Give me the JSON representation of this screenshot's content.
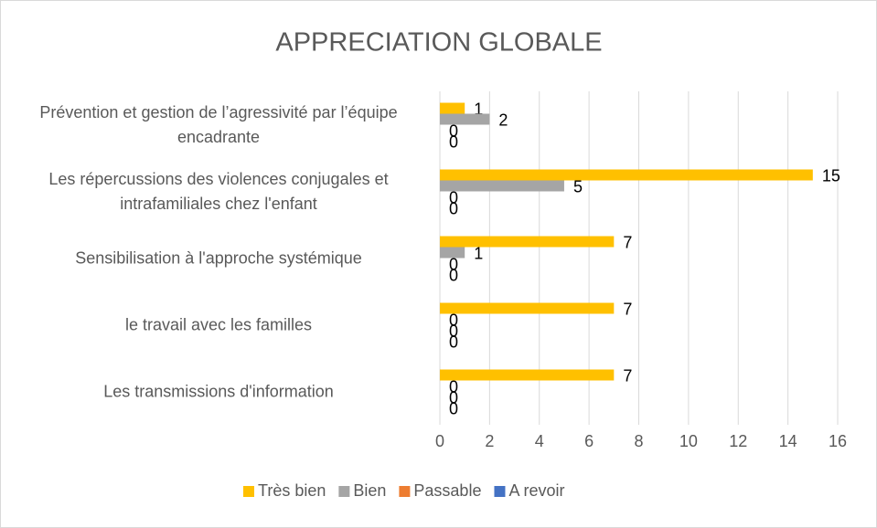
{
  "chart_data": {
    "type": "bar",
    "orientation": "horizontal",
    "title": "APPRECIATION GLOBALE",
    "categories": [
      "Prévention et gestion de l’agressivité par l’équipe encadrante",
      "Les répercussions des violences conjugales et intrafamiliales chez l'enfant",
      "Sensibilisation à l'approche systémique",
      "le travail avec les familles",
      "Les transmissions d'information"
    ],
    "series": [
      {
        "name": "Très bien",
        "color": "#FFC000",
        "values": [
          1,
          15,
          7,
          7,
          7
        ]
      },
      {
        "name": "Bien",
        "color": "#A5A5A5",
        "values": [
          2,
          5,
          1,
          0,
          0
        ]
      },
      {
        "name": "Passable",
        "color": "#ED7D31",
        "values": [
          0,
          0,
          0,
          0,
          0
        ]
      },
      {
        "name": "A revoir",
        "color": "#4472C4",
        "values": [
          0,
          0,
          0,
          0,
          0
        ]
      }
    ],
    "xlim": [
      0,
      16
    ],
    "xticks": [
      0,
      2,
      4,
      6,
      8,
      10,
      12,
      14,
      16
    ],
    "grid": true,
    "legend": "bottom"
  }
}
